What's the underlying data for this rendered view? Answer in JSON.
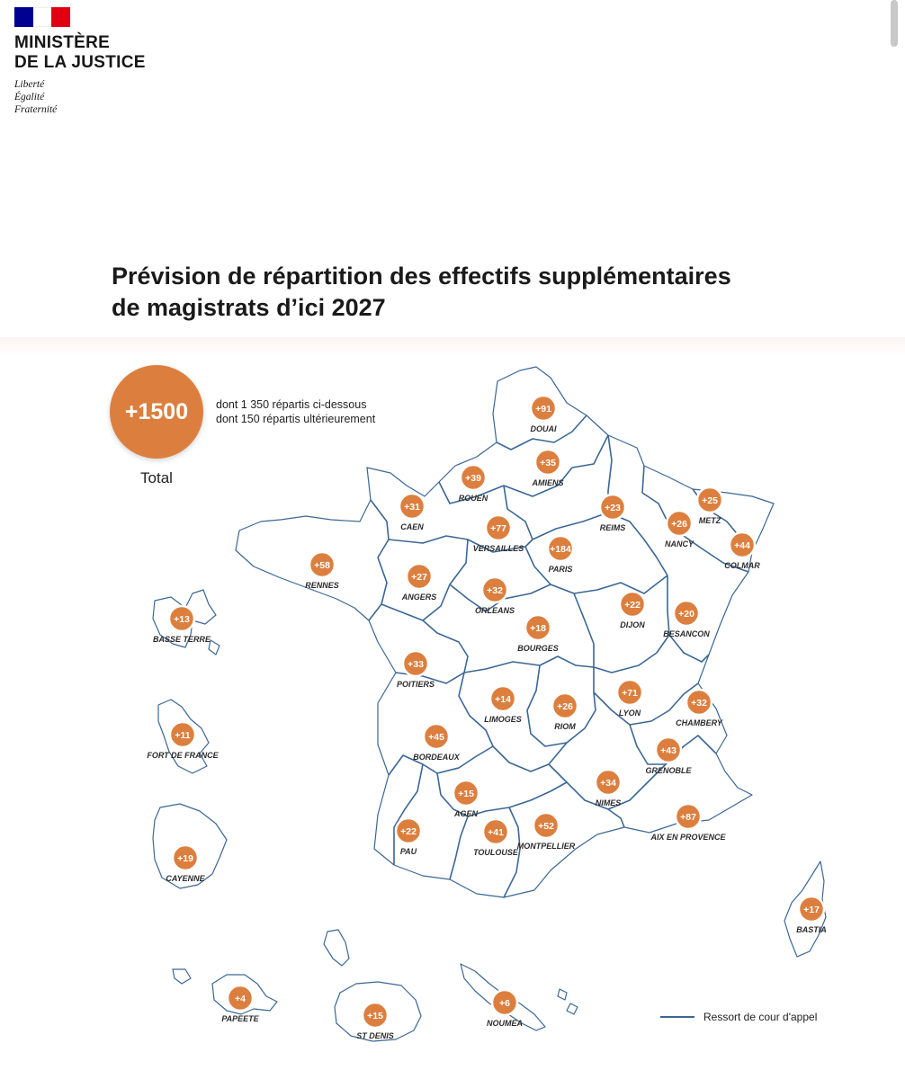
{
  "header": {
    "ministry_line1": "MINISTÈRE",
    "ministry_line2": "DE LA JUSTICE",
    "motto": [
      "Liberté",
      "Égalité",
      "Fraternité"
    ]
  },
  "title_line1": "Prévision de répartition des effectifs supplémentaires",
  "title_line2": "de magistrats d’ici 2027",
  "total": {
    "value": "+1500",
    "label": "Total",
    "note_line1": "dont 1 350 répartis ci-dessous",
    "note_line2": "dont 150 répartis ultérieurement"
  },
  "colors": {
    "accent": "#dc7f3e",
    "outline": "#3b6795"
  },
  "cities": [
    {
      "name": "DOUAI",
      "value": "+91"
    },
    {
      "name": "AMIENS",
      "value": "+35"
    },
    {
      "name": "ROUEN",
      "value": "+39"
    },
    {
      "name": "CAEN",
      "value": "+31"
    },
    {
      "name": "VERSAILLES",
      "value": "+77"
    },
    {
      "name": "REIMS",
      "value": "+23"
    },
    {
      "name": "METZ",
      "value": "+25"
    },
    {
      "name": "NANCY",
      "value": "+26"
    },
    {
      "name": "COLMAR",
      "value": "+44"
    },
    {
      "name": "PARIS",
      "value": "+184"
    },
    {
      "name": "RENNES",
      "value": "+58"
    },
    {
      "name": "ANGERS",
      "value": "+27"
    },
    {
      "name": "ORLEANS",
      "value": "+32"
    },
    {
      "name": "DIJON",
      "value": "+22"
    },
    {
      "name": "BESANCON",
      "value": "+20"
    },
    {
      "name": "BOURGES",
      "value": "+18"
    },
    {
      "name": "POITIERS",
      "value": "+33"
    },
    {
      "name": "LIMOGES",
      "value": "+14"
    },
    {
      "name": "RIOM",
      "value": "+26"
    },
    {
      "name": "LYON",
      "value": "+71"
    },
    {
      "name": "CHAMBERY",
      "value": "+32"
    },
    {
      "name": "BORDEAUX",
      "value": "+45"
    },
    {
      "name": "GRENOBLE",
      "value": "+43"
    },
    {
      "name": "NIMES",
      "value": "+34"
    },
    {
      "name": "AGEN",
      "value": "+15"
    },
    {
      "name": "AIX EN PROVENCE",
      "value": "+87"
    },
    {
      "name": "PAU",
      "value": "+22"
    },
    {
      "name": "TOULOUSE",
      "value": "+41"
    },
    {
      "name": "MONTPELLIER",
      "value": "+52"
    },
    {
      "name": "BASTIA",
      "value": "+17"
    },
    {
      "name": "BASSE TERRE",
      "value": "+13"
    },
    {
      "name": "FORT DE FRANCE",
      "value": "+11"
    },
    {
      "name": "CAYENNE",
      "value": "+19"
    },
    {
      "name": "PAPEETE",
      "value": "+4"
    },
    {
      "name": "ST DENIS",
      "value": "+15"
    },
    {
      "name": "NOUMEA",
      "value": "+6"
    }
  ],
  "legend": {
    "label": "Ressort de cour d'appel"
  }
}
